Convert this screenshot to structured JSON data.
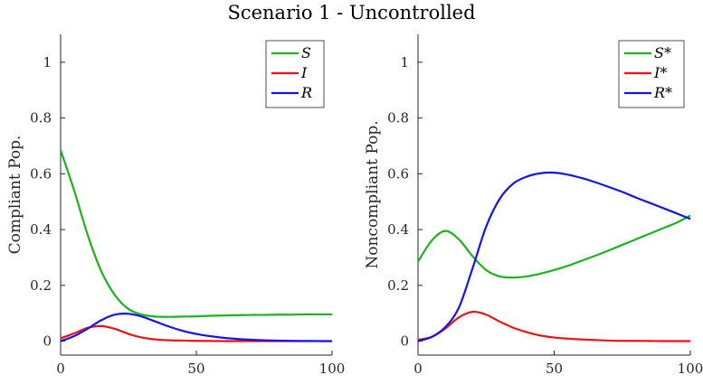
{
  "figure": {
    "title": "Scenario 1 - Uncontrolled"
  },
  "colors": {
    "S": "#1db31d",
    "I": "#ee1111",
    "R": "#1414e6",
    "axis": "#262626"
  },
  "chart_data": [
    {
      "type": "line",
      "title": "",
      "xlabel": "",
      "ylabel": "Compliant Pop.",
      "xlim": [
        0,
        100
      ],
      "ylim": [
        -0.05,
        1.1
      ],
      "xticks": [
        0,
        50,
        100
      ],
      "yticks": [
        0,
        0.2,
        0.4,
        0.6,
        0.8,
        1
      ],
      "ytick_labels": [
        "0",
        "0.2",
        "0.4",
        "0.6",
        "0.8",
        "1"
      ],
      "grid": false,
      "legend_position": "top-right",
      "x": [
        0,
        5,
        10,
        15,
        20,
        25,
        30,
        35,
        40,
        45,
        50,
        55,
        60,
        65,
        70,
        75,
        80,
        85,
        90,
        95,
        100
      ],
      "series": [
        {
          "name": "S",
          "color_key": "S",
          "values": [
            0.685,
            0.54,
            0.38,
            0.25,
            0.165,
            0.115,
            0.095,
            0.088,
            0.087,
            0.088,
            0.089,
            0.091,
            0.092,
            0.093,
            0.094,
            0.094,
            0.095,
            0.095,
            0.096,
            0.096,
            0.096
          ]
        },
        {
          "name": "I",
          "color_key": "I",
          "values": [
            0.01,
            0.028,
            0.048,
            0.054,
            0.044,
            0.026,
            0.013,
            0.006,
            0.003,
            0.002,
            0.001,
            0.0005,
            0.0003,
            0.0002,
            0.0001,
            0.0001,
            0,
            0,
            0,
            0,
            0
          ]
        },
        {
          "name": "R",
          "color_key": "R",
          "values": [
            0.0,
            0.018,
            0.045,
            0.075,
            0.095,
            0.098,
            0.088,
            0.07,
            0.052,
            0.037,
            0.026,
            0.018,
            0.012,
            0.008,
            0.005,
            0.003,
            0.002,
            0.001,
            0.0007,
            0.0004,
            0.0002
          ]
        }
      ]
    },
    {
      "type": "line",
      "title": "",
      "xlabel": "",
      "ylabel": "Noncompliant Pop.",
      "xlim": [
        0,
        100
      ],
      "ylim": [
        -0.05,
        1.1
      ],
      "xticks": [
        0,
        50,
        100
      ],
      "yticks": [
        0,
        0.2,
        0.4,
        0.6,
        0.8,
        1
      ],
      "ytick_labels": [
        "0",
        "0.2",
        "0.4",
        "0.6",
        "0.8",
        "1"
      ],
      "grid": false,
      "legend_position": "top-right",
      "x": [
        0,
        5,
        10,
        15,
        20,
        25,
        30,
        35,
        40,
        45,
        50,
        55,
        60,
        65,
        70,
        75,
        80,
        85,
        90,
        95,
        100
      ],
      "series": [
        {
          "name": "S*",
          "color_key": "S",
          "values": [
            0.285,
            0.36,
            0.395,
            0.365,
            0.305,
            0.255,
            0.232,
            0.228,
            0.232,
            0.242,
            0.255,
            0.27,
            0.288,
            0.306,
            0.325,
            0.345,
            0.365,
            0.385,
            0.405,
            0.425,
            0.45
          ]
        },
        {
          "name": "I*",
          "color_key": "I",
          "values": [
            0.005,
            0.015,
            0.045,
            0.085,
            0.105,
            0.095,
            0.07,
            0.048,
            0.032,
            0.02,
            0.013,
            0.009,
            0.006,
            0.004,
            0.002,
            0.001,
            0.001,
            0.0005,
            0.0003,
            0.0002,
            0.0001
          ]
        },
        {
          "name": "R*",
          "color_key": "R",
          "values": [
            0.0,
            0.015,
            0.05,
            0.12,
            0.26,
            0.41,
            0.51,
            0.565,
            0.59,
            0.602,
            0.604,
            0.597,
            0.585,
            0.57,
            0.553,
            0.535,
            0.515,
            0.496,
            0.477,
            0.458,
            0.438
          ]
        }
      ]
    }
  ]
}
